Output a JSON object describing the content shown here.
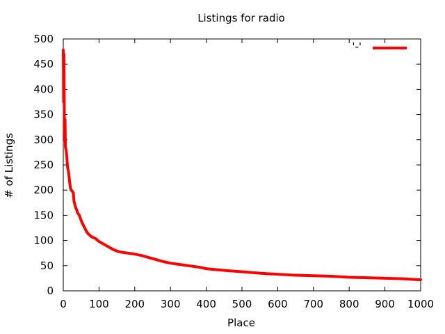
{
  "chart_data": {
    "type": "line",
    "title": "Listings for radio",
    "xlabel": "Place",
    "ylabel": "# of Listings",
    "xlim": [
      0,
      1000
    ],
    "ylim": [
      0,
      500
    ],
    "x_ticks": [
      0,
      100,
      200,
      300,
      400,
      500,
      600,
      700,
      800,
      900,
      1000
    ],
    "y_ticks": [
      0,
      50,
      100,
      150,
      200,
      250,
      300,
      350,
      400,
      450,
      500
    ],
    "grid": false,
    "legend": {
      "position": "top-right",
      "entries": [
        {
          "label": "'-'",
          "color": "#ff0000"
        }
      ]
    },
    "series": [
      {
        "color": "#ff0000",
        "x": [
          0,
          1,
          2,
          3,
          4,
          5,
          6,
          8,
          10,
          12,
          15,
          18,
          20,
          22,
          25,
          28,
          30,
          33,
          35,
          38,
          40,
          45,
          50,
          55,
          60,
          65,
          70,
          75,
          80,
          90,
          100,
          110,
          120,
          130,
          140,
          150,
          160,
          180,
          200,
          220,
          240,
          260,
          280,
          300,
          320,
          350,
          380,
          400,
          430,
          460,
          500,
          550,
          600,
          650,
          700,
          750,
          800,
          850,
          900,
          950,
          1000
        ],
        "values": [
          478,
          375,
          470,
          350,
          300,
          340,
          285,
          280,
          265,
          245,
          235,
          215,
          205,
          200,
          198,
          195,
          178,
          170,
          165,
          160,
          155,
          150,
          140,
          132,
          125,
          118,
          113,
          110,
          107,
          104,
          98,
          94,
          90,
          86,
          82,
          79,
          77,
          75,
          73,
          70,
          66,
          62,
          58,
          55,
          53,
          50,
          47,
          44,
          42,
          40,
          38,
          35,
          33,
          31,
          30,
          29,
          27,
          26,
          25,
          24,
          22
        ]
      }
    ]
  }
}
